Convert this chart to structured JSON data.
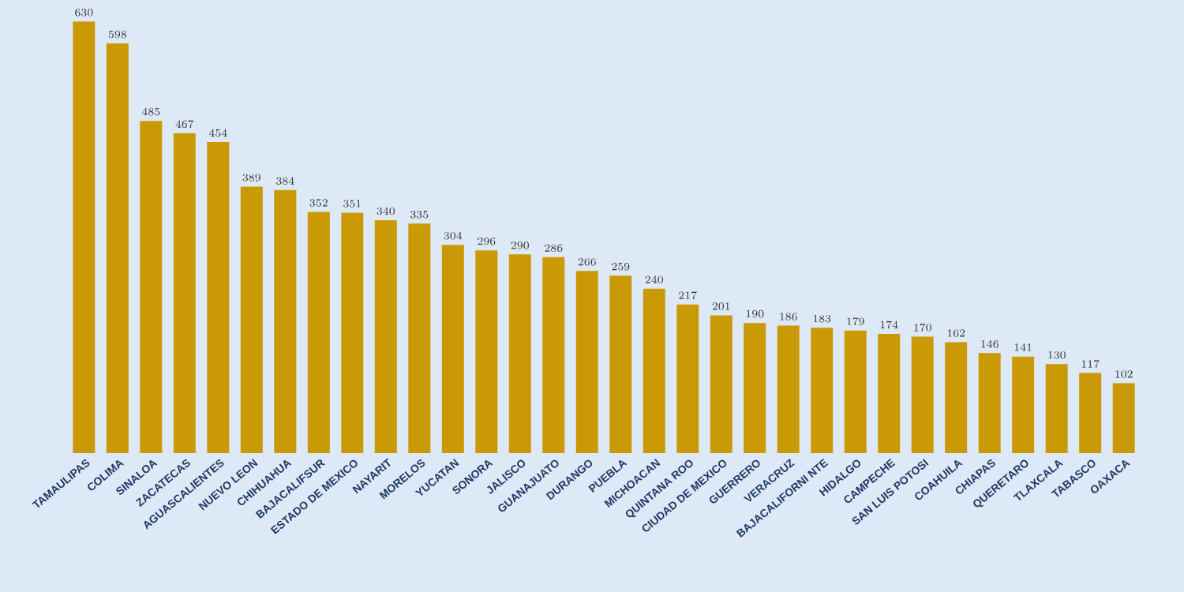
{
  "chart_data": {
    "type": "bar",
    "categories": [
      "TAMAULIPAS",
      "COLIMA",
      "SINALOA",
      "ZACATECAS",
      "AGUASCALIENTES",
      "NUEVO LEON",
      "CHIHUAHUA",
      "BAJACALIFSUR",
      "ESTADO DE MEXICO",
      "NAYARIT",
      "MORELOS",
      "YUCATAN",
      "SONORA",
      "JALISCO",
      "GUANAJUATO",
      "DURANGO",
      "PUEBLA",
      "MICHOACAN",
      "QUINTANA ROO",
      "CIUDAD DE MEXICO",
      "GUERRERO",
      "VERACRUZ",
      "BAJACALIFORNI NTE",
      "HIDALGO",
      "CAMPECHE",
      "SAN LUIS POTOSI",
      "COAHUILA",
      "CHIAPAS",
      "QUERETARO",
      "TLAXCALA",
      "TABASCO",
      "OAXACA"
    ],
    "values": [
      630,
      598,
      485,
      467,
      454,
      389,
      384,
      352,
      351,
      340,
      335,
      304,
      296,
      290,
      286,
      266,
      259,
      240,
      217,
      201,
      190,
      186,
      183,
      179,
      174,
      170,
      162,
      146,
      141,
      130,
      117,
      102
    ],
    "color": "#c99a06",
    "data_labels": true
  }
}
